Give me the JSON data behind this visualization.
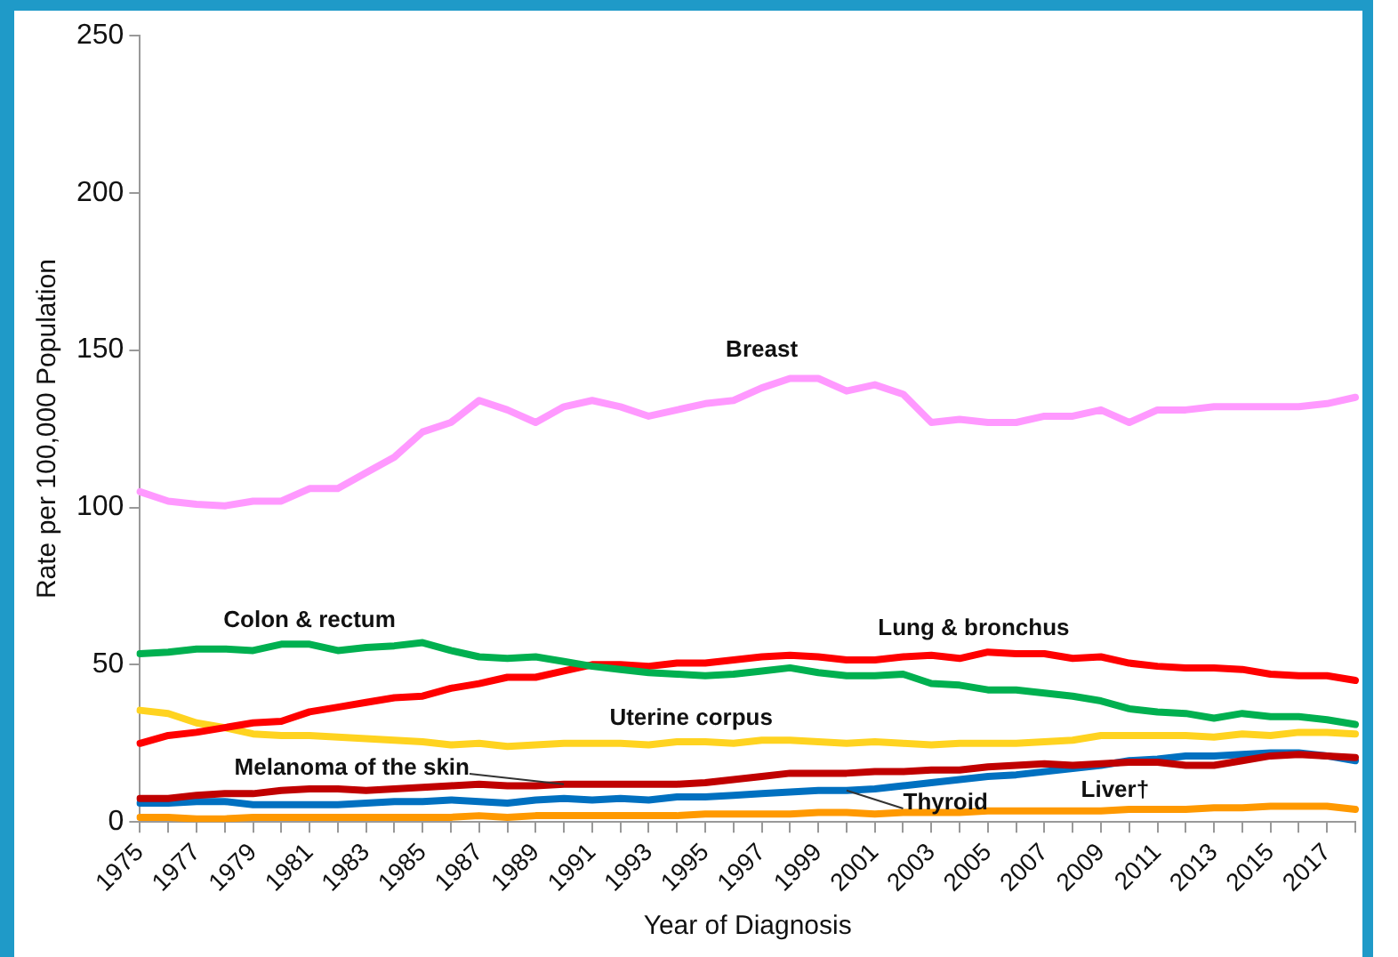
{
  "chart_data": {
    "type": "line",
    "xlabel": "Year of Diagnosis",
    "ylabel": "Rate per 100,000 Population",
    "categories": [
      "1975",
      null,
      "1977",
      null,
      "1979",
      null,
      "1981",
      null,
      "1983",
      null,
      "1985",
      null,
      "1987",
      null,
      "1989",
      null,
      "1991",
      null,
      "1993",
      null,
      "1995",
      null,
      "1997",
      null,
      "1999",
      null,
      "2001",
      null,
      "2003",
      null,
      "2005",
      null,
      "2007",
      null,
      "2009",
      null,
      "2011",
      null,
      "2013",
      null,
      "2015",
      null,
      "2017",
      null
    ],
    "ylim": [
      0,
      250
    ],
    "yticks": [
      0,
      50,
      100,
      150,
      200,
      250
    ],
    "legend": false,
    "marker": "none",
    "line_style": "solid",
    "series": [
      {
        "name": "Breast",
        "color": "#ff99ff",
        "values": [
          105,
          102,
          101,
          100.5,
          102,
          102,
          106,
          106,
          111,
          116,
          124,
          127,
          134,
          131,
          127,
          132,
          134,
          132,
          129,
          131,
          133,
          134,
          138,
          141,
          141,
          137,
          139,
          136,
          127,
          128,
          127,
          127,
          129,
          129,
          131,
          127,
          131,
          131,
          132,
          132,
          132,
          132,
          133,
          135
        ]
      },
      {
        "name": "Colon & rectum",
        "color": "#00b050",
        "values": [
          53.5,
          54,
          55,
          55,
          54.5,
          56.5,
          56.5,
          54.5,
          55.5,
          56,
          57,
          54.5,
          52.5,
          52,
          52.5,
          51,
          49.5,
          48.5,
          47.5,
          47,
          46.5,
          47,
          48,
          49,
          47.5,
          46.5,
          46.5,
          47,
          44,
          43.5,
          42,
          42,
          41,
          40,
          38.5,
          36,
          35,
          34.5,
          33,
          34.5,
          33.5,
          33.5,
          32.5,
          31
        ]
      },
      {
        "name": "Lung & bronchus",
        "color": "#ff0000",
        "values": [
          25,
          27.5,
          28.5,
          30,
          31.5,
          32,
          35,
          36.5,
          38,
          39.5,
          40,
          42.5,
          44,
          46,
          46,
          48,
          50,
          50,
          49.5,
          50.5,
          50.5,
          51.5,
          52.5,
          53,
          52.5,
          51.5,
          51.5,
          52.5,
          53,
          52,
          54,
          53.5,
          53.5,
          52,
          52.5,
          50.5,
          49.5,
          49,
          49,
          48.5,
          47,
          46.5,
          46.5,
          45
        ]
      },
      {
        "name": "Uterine corpus",
        "color": "#ffd320",
        "values": [
          35.5,
          34.5,
          31.5,
          30,
          28,
          27.5,
          27.5,
          27,
          26.5,
          26,
          25.5,
          24.5,
          25,
          24,
          24.5,
          25,
          25,
          25,
          24.5,
          25.5,
          25.5,
          25,
          26,
          26,
          25.5,
          25,
          25.5,
          25,
          24.5,
          25,
          25,
          25,
          25.5,
          26,
          27.5,
          27.5,
          27.5,
          27.5,
          27,
          28,
          27.5,
          28.5,
          28.5,
          28
        ]
      },
      {
        "name": "Melanoma of the skin",
        "color": "#c00000",
        "values": [
          7.5,
          7.5,
          8.5,
          9,
          9,
          10,
          10.5,
          10.5,
          10,
          10.5,
          11,
          11.5,
          12,
          11.5,
          11.5,
          12,
          12,
          12,
          12,
          12,
          12.5,
          13.5,
          14.5,
          15.5,
          15.5,
          15.5,
          16,
          16,
          16.5,
          16.5,
          17.5,
          18,
          18.5,
          18,
          18.5,
          19,
          19,
          18,
          18,
          19.5,
          21,
          21.5,
          21,
          20.5
        ]
      },
      {
        "name": "Thyroid",
        "color": "#0070c0",
        "values": [
          6,
          6,
          6.5,
          6.5,
          5.5,
          5.5,
          5.5,
          5.5,
          6,
          6.5,
          6.5,
          7,
          6.5,
          6,
          7,
          7.5,
          7,
          7.5,
          7,
          8,
          8,
          8.5,
          9,
          9.5,
          10,
          10,
          10.5,
          11.5,
          12.5,
          13.5,
          14.5,
          15,
          16,
          17,
          18,
          19.5,
          20,
          21,
          21,
          21.5,
          22,
          22,
          21,
          19.5
        ]
      },
      {
        "name": "Liver†",
        "color": "#ff9900",
        "values": [
          1.5,
          1.5,
          1,
          1,
          1.5,
          1.5,
          1.5,
          1.5,
          1.5,
          1.5,
          1.5,
          1.5,
          2,
          1.5,
          2,
          2,
          2,
          2,
          2,
          2,
          2.5,
          2.5,
          2.5,
          2.5,
          3,
          3,
          2.5,
          3,
          3,
          3,
          3.5,
          3.5,
          3.5,
          3.5,
          3.5,
          4,
          4,
          4,
          4.5,
          4.5,
          5,
          5,
          5,
          4
        ]
      }
    ]
  }
}
